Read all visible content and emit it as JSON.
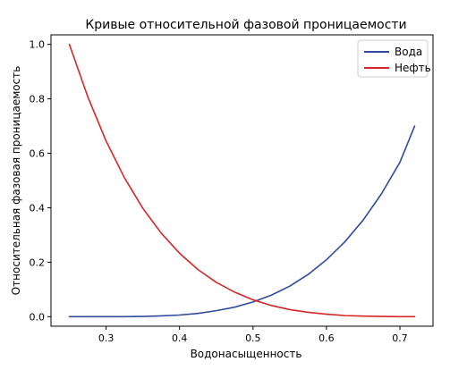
{
  "chart_data": {
    "type": "line",
    "title": "Кривые относительной фазовой проницаемости",
    "xlabel": "Водонасыщенность",
    "ylabel": "Относительная фазовая проницаемость",
    "xlim": [
      0.225,
      0.745
    ],
    "ylim": [
      -0.035,
      1.035
    ],
    "xticks": [
      0.3,
      0.4,
      0.5,
      0.6,
      0.7
    ],
    "xtick_labels": [
      "0.3",
      "0.4",
      "0.5",
      "0.6",
      "0.7"
    ],
    "yticks": [
      0.0,
      0.2,
      0.4,
      0.6,
      0.8,
      1.0
    ],
    "ytick_labels": [
      "0.0",
      "0.2",
      "0.4",
      "0.6",
      "0.8",
      "1.0"
    ],
    "grid": false,
    "legend_position": "top-right",
    "x": [
      0.25,
      0.275,
      0.3,
      0.325,
      0.35,
      0.375,
      0.4,
      0.425,
      0.45,
      0.475,
      0.5,
      0.525,
      0.55,
      0.575,
      0.6,
      0.625,
      0.65,
      0.675,
      0.7,
      0.72
    ],
    "series": [
      {
        "name": "Вода",
        "color": "#2f4b9c",
        "values": [
          0.0,
          0.0,
          0.0,
          0.0,
          0.001,
          0.003,
          0.006,
          0.012,
          0.022,
          0.035,
          0.054,
          0.079,
          0.112,
          0.155,
          0.209,
          0.275,
          0.355,
          0.452,
          0.567,
          0.7
        ]
      },
      {
        "name": "Нефть",
        "color": "#d62728",
        "values": [
          1.0,
          0.808,
          0.645,
          0.51,
          0.398,
          0.307,
          0.233,
          0.173,
          0.126,
          0.09,
          0.062,
          0.041,
          0.026,
          0.016,
          0.009,
          0.004,
          0.002,
          0.001,
          0.0,
          0.0
        ]
      }
    ]
  }
}
